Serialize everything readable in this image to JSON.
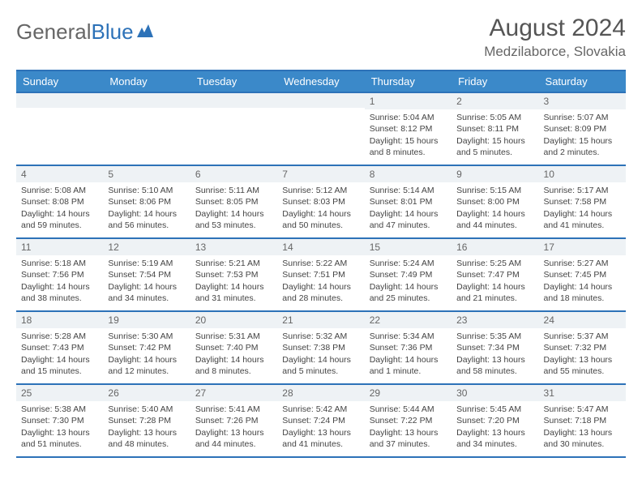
{
  "brand": {
    "part1": "General",
    "part2": "Blue"
  },
  "title": "August 2024",
  "location": "Medzilaborce, Slovakia",
  "colors": {
    "header_bg": "#3b89c9",
    "header_text": "#ffffff",
    "border": "#2d72b8",
    "daynum_bg": "#eef2f5",
    "text": "#444444",
    "title": "#555555"
  },
  "day_headers": [
    "Sunday",
    "Monday",
    "Tuesday",
    "Wednesday",
    "Thursday",
    "Friday",
    "Saturday"
  ],
  "weeks": [
    [
      null,
      null,
      null,
      null,
      {
        "n": "1",
        "sr": "5:04 AM",
        "ss": "8:12 PM",
        "dl": "15 hours and 8 minutes."
      },
      {
        "n": "2",
        "sr": "5:05 AM",
        "ss": "8:11 PM",
        "dl": "15 hours and 5 minutes."
      },
      {
        "n": "3",
        "sr": "5:07 AM",
        "ss": "8:09 PM",
        "dl": "15 hours and 2 minutes."
      }
    ],
    [
      {
        "n": "4",
        "sr": "5:08 AM",
        "ss": "8:08 PM",
        "dl": "14 hours and 59 minutes."
      },
      {
        "n": "5",
        "sr": "5:10 AM",
        "ss": "8:06 PM",
        "dl": "14 hours and 56 minutes."
      },
      {
        "n": "6",
        "sr": "5:11 AM",
        "ss": "8:05 PM",
        "dl": "14 hours and 53 minutes."
      },
      {
        "n": "7",
        "sr": "5:12 AM",
        "ss": "8:03 PM",
        "dl": "14 hours and 50 minutes."
      },
      {
        "n": "8",
        "sr": "5:14 AM",
        "ss": "8:01 PM",
        "dl": "14 hours and 47 minutes."
      },
      {
        "n": "9",
        "sr": "5:15 AM",
        "ss": "8:00 PM",
        "dl": "14 hours and 44 minutes."
      },
      {
        "n": "10",
        "sr": "5:17 AM",
        "ss": "7:58 PM",
        "dl": "14 hours and 41 minutes."
      }
    ],
    [
      {
        "n": "11",
        "sr": "5:18 AM",
        "ss": "7:56 PM",
        "dl": "14 hours and 38 minutes."
      },
      {
        "n": "12",
        "sr": "5:19 AM",
        "ss": "7:54 PM",
        "dl": "14 hours and 34 minutes."
      },
      {
        "n": "13",
        "sr": "5:21 AM",
        "ss": "7:53 PM",
        "dl": "14 hours and 31 minutes."
      },
      {
        "n": "14",
        "sr": "5:22 AM",
        "ss": "7:51 PM",
        "dl": "14 hours and 28 minutes."
      },
      {
        "n": "15",
        "sr": "5:24 AM",
        "ss": "7:49 PM",
        "dl": "14 hours and 25 minutes."
      },
      {
        "n": "16",
        "sr": "5:25 AM",
        "ss": "7:47 PM",
        "dl": "14 hours and 21 minutes."
      },
      {
        "n": "17",
        "sr": "5:27 AM",
        "ss": "7:45 PM",
        "dl": "14 hours and 18 minutes."
      }
    ],
    [
      {
        "n": "18",
        "sr": "5:28 AM",
        "ss": "7:43 PM",
        "dl": "14 hours and 15 minutes."
      },
      {
        "n": "19",
        "sr": "5:30 AM",
        "ss": "7:42 PM",
        "dl": "14 hours and 12 minutes."
      },
      {
        "n": "20",
        "sr": "5:31 AM",
        "ss": "7:40 PM",
        "dl": "14 hours and 8 minutes."
      },
      {
        "n": "21",
        "sr": "5:32 AM",
        "ss": "7:38 PM",
        "dl": "14 hours and 5 minutes."
      },
      {
        "n": "22",
        "sr": "5:34 AM",
        "ss": "7:36 PM",
        "dl": "14 hours and 1 minute."
      },
      {
        "n": "23",
        "sr": "5:35 AM",
        "ss": "7:34 PM",
        "dl": "13 hours and 58 minutes."
      },
      {
        "n": "24",
        "sr": "5:37 AM",
        "ss": "7:32 PM",
        "dl": "13 hours and 55 minutes."
      }
    ],
    [
      {
        "n": "25",
        "sr": "5:38 AM",
        "ss": "7:30 PM",
        "dl": "13 hours and 51 minutes."
      },
      {
        "n": "26",
        "sr": "5:40 AM",
        "ss": "7:28 PM",
        "dl": "13 hours and 48 minutes."
      },
      {
        "n": "27",
        "sr": "5:41 AM",
        "ss": "7:26 PM",
        "dl": "13 hours and 44 minutes."
      },
      {
        "n": "28",
        "sr": "5:42 AM",
        "ss": "7:24 PM",
        "dl": "13 hours and 41 minutes."
      },
      {
        "n": "29",
        "sr": "5:44 AM",
        "ss": "7:22 PM",
        "dl": "13 hours and 37 minutes."
      },
      {
        "n": "30",
        "sr": "5:45 AM",
        "ss": "7:20 PM",
        "dl": "13 hours and 34 minutes."
      },
      {
        "n": "31",
        "sr": "5:47 AM",
        "ss": "7:18 PM",
        "dl": "13 hours and 30 minutes."
      }
    ]
  ],
  "labels": {
    "sunrise": "Sunrise: ",
    "sunset": "Sunset: ",
    "daylight": "Daylight: "
  }
}
